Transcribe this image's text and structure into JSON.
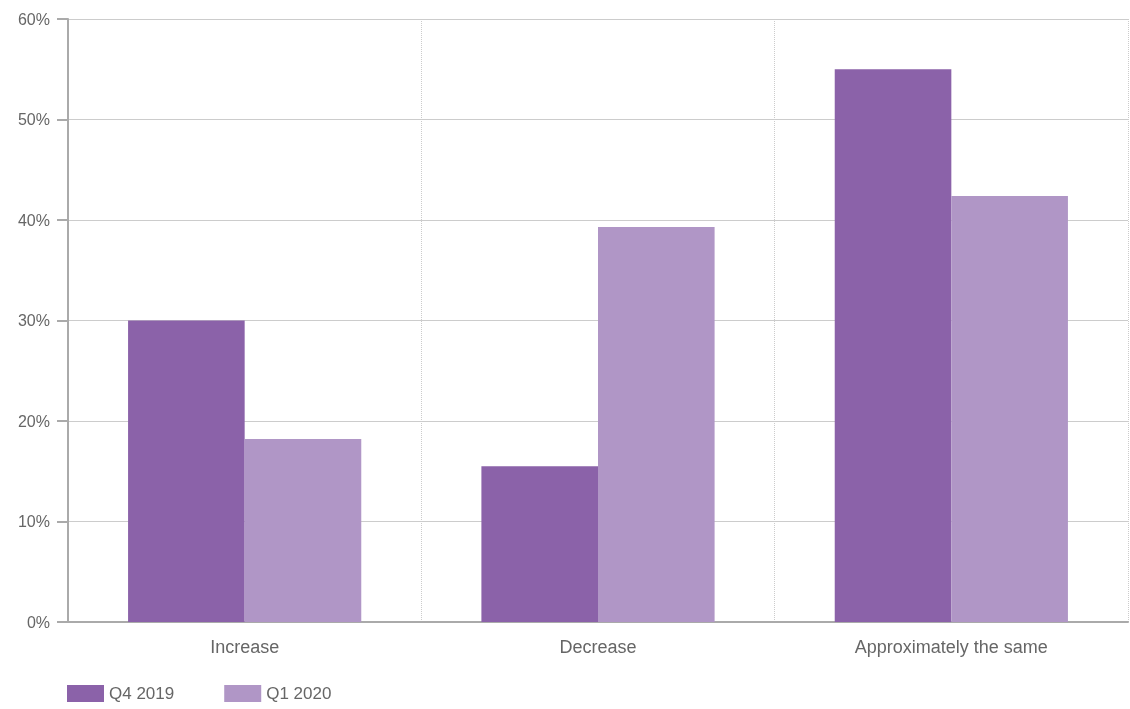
{
  "chart_data": {
    "type": "bar",
    "categories": [
      "Increase",
      "Decrease",
      "Approximately the same"
    ],
    "series": [
      {
        "name": "Q4 2019",
        "color": "#8b62a9",
        "values": [
          30,
          15.5,
          55
        ]
      },
      {
        "name": "Q1 2020",
        "color": "#b096c6",
        "values": [
          18.2,
          39.3,
          42.4
        ]
      }
    ],
    "ylim": [
      0,
      60
    ],
    "yticks": [
      {
        "value": 0,
        "label": "0%"
      },
      {
        "value": 10,
        "label": "10%"
      },
      {
        "value": 20,
        "label": "20%"
      },
      {
        "value": 30,
        "label": "30%"
      },
      {
        "value": 40,
        "label": "40%"
      },
      {
        "value": 50,
        "label": "50%"
      },
      {
        "value": 60,
        "label": "60%"
      }
    ],
    "grid": true,
    "legend": "bottom left"
  }
}
